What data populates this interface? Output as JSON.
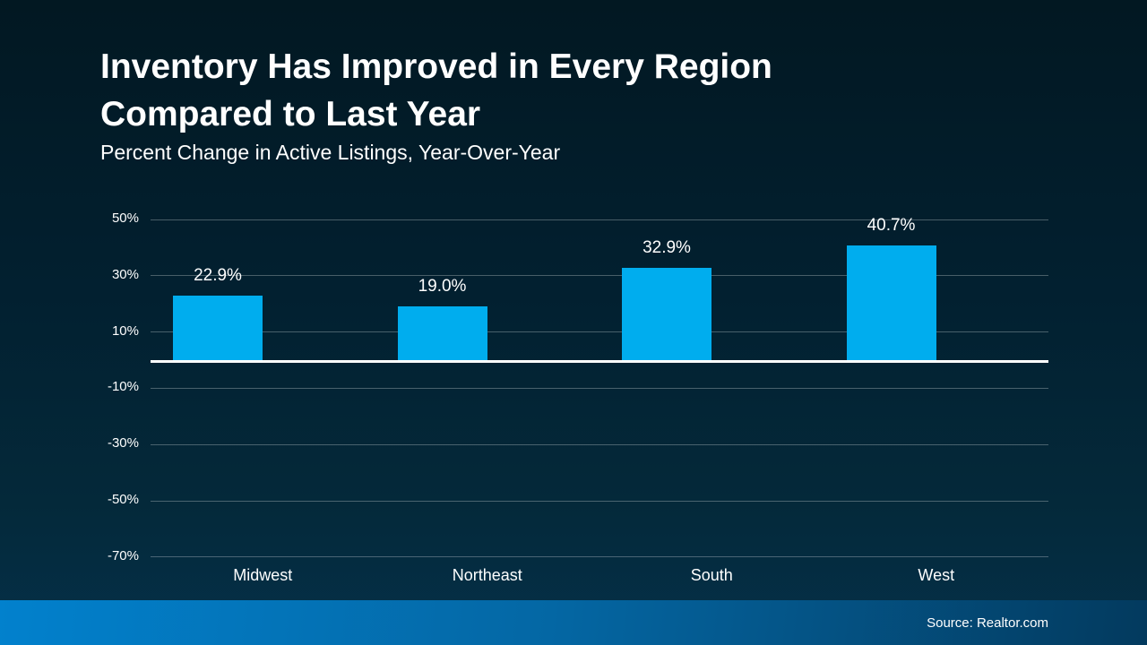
{
  "header": {
    "title_line1": "Inventory Has Improved in Every Region",
    "title_line2": "Compared to Last Year",
    "subtitle": "Percent Change in Active Listings, Year-Over-Year"
  },
  "chart_data": {
    "type": "bar",
    "title": "Inventory Has Improved in Every Region Compared to Last Year",
    "subtitle": "Percent Change in Active Listings, Year-Over-Year",
    "categories": [
      "Midwest",
      "Northeast",
      "South",
      "West"
    ],
    "values": [
      22.9,
      19.0,
      32.9,
      40.7
    ],
    "value_labels": [
      "22.9%",
      "19.0%",
      "32.9%",
      "40.7%"
    ],
    "xlabel": "",
    "ylabel": "",
    "ylim": [
      -70,
      50
    ],
    "yticks": [
      50,
      30,
      10,
      -10,
      -30,
      -50,
      -70
    ],
    "ytick_labels": [
      "50%",
      "30%",
      "10%",
      "-10%",
      "-30%",
      "-50%",
      "-70%"
    ],
    "grid": true,
    "legend": "none",
    "bar_color": "#00ADEE",
    "zero_line_color": "#FFFFFF"
  },
  "footer": {
    "source": "Source: Realtor.com"
  },
  "colors": {
    "background_top": "#021822",
    "background_bottom": "#05304A",
    "footer_gradient_left": "#0281CD",
    "footer_gradient_right": "#033A5E",
    "text": "#FFFFFF",
    "gridline": "#465663"
  }
}
